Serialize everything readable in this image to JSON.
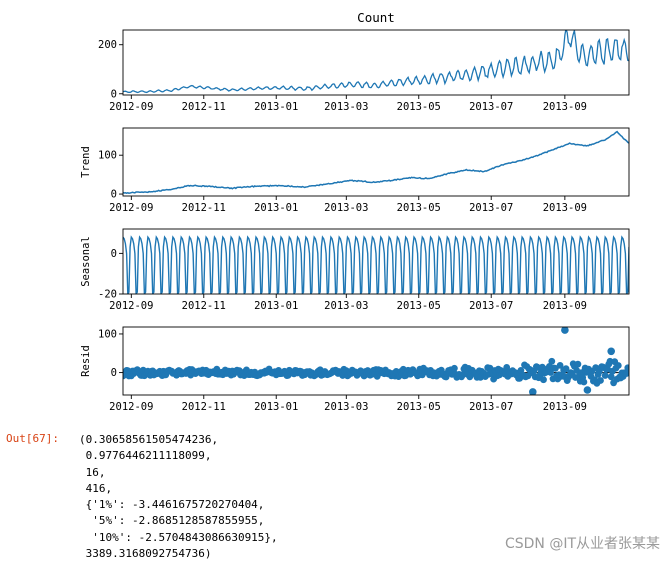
{
  "chart_data": {
    "type": "line",
    "x_start": "2012-08-25",
    "x_end": "2013-10-25",
    "x_ticks": [
      "2012-09",
      "2012-11",
      "2013-01",
      "2013-03",
      "2013-05",
      "2013-07",
      "2013-09"
    ],
    "panels": [
      {
        "title": "Count",
        "ylabel": "",
        "kind": "line",
        "ylim": [
          -5,
          260
        ],
        "yticks": [
          0,
          200
        ],
        "points": [
          [
            "2012-08-25",
            8
          ],
          [
            "2012-09-15",
            9
          ],
          [
            "2012-10-05",
            14
          ],
          [
            "2012-10-20",
            30
          ],
          [
            "2012-11-05",
            24
          ],
          [
            "2012-11-25",
            15
          ],
          [
            "2012-12-15",
            22
          ],
          [
            "2013-01-05",
            25
          ],
          [
            "2013-01-25",
            20
          ],
          [
            "2013-02-15",
            32
          ],
          [
            "2013-03-05",
            38
          ],
          [
            "2013-03-25",
            34
          ],
          [
            "2013-04-10",
            44
          ],
          [
            "2013-04-25",
            52
          ],
          [
            "2013-05-10",
            58
          ],
          [
            "2013-05-25",
            68
          ],
          [
            "2013-06-10",
            80
          ],
          [
            "2013-06-25",
            90
          ],
          [
            "2013-07-10",
            104
          ],
          [
            "2013-07-25",
            116
          ],
          [
            "2013-08-10",
            128
          ],
          [
            "2013-08-25",
            140
          ],
          [
            "2013-09-05",
            245
          ],
          [
            "2013-09-15",
            150
          ],
          [
            "2013-09-30",
            165
          ],
          [
            "2013-10-15",
            185
          ],
          [
            "2013-10-25",
            170
          ]
        ],
        "weekly_amplitude": [
          [
            0,
            3
          ],
          [
            0.3,
            5
          ],
          [
            0.55,
            12
          ],
          [
            0.7,
            25
          ],
          [
            0.85,
            40
          ],
          [
            1,
            50
          ]
        ]
      },
      {
        "title": "",
        "ylabel": "Trend",
        "kind": "line",
        "ylim": [
          -5,
          170
        ],
        "yticks": [
          0,
          100
        ],
        "points": [
          [
            "2012-08-25",
            3
          ],
          [
            "2012-09-15",
            5
          ],
          [
            "2012-10-05",
            12
          ],
          [
            "2012-10-20",
            22
          ],
          [
            "2012-11-05",
            20
          ],
          [
            "2012-11-25",
            15
          ],
          [
            "2012-12-15",
            20
          ],
          [
            "2013-01-05",
            22
          ],
          [
            "2013-01-25",
            18
          ],
          [
            "2013-02-15",
            27
          ],
          [
            "2013-03-05",
            35
          ],
          [
            "2013-03-25",
            30
          ],
          [
            "2013-04-10",
            36
          ],
          [
            "2013-04-25",
            42
          ],
          [
            "2013-05-10",
            40
          ],
          [
            "2013-05-25",
            52
          ],
          [
            "2013-06-10",
            62
          ],
          [
            "2013-06-25",
            58
          ],
          [
            "2013-07-10",
            75
          ],
          [
            "2013-07-25",
            85
          ],
          [
            "2013-08-10",
            100
          ],
          [
            "2013-08-25",
            118
          ],
          [
            "2013-09-05",
            130
          ],
          [
            "2013-09-20",
            124
          ],
          [
            "2013-10-05",
            140
          ],
          [
            "2013-10-15",
            160
          ],
          [
            "2013-10-25",
            130
          ]
        ]
      },
      {
        "title": "",
        "ylabel": "Seasonal",
        "kind": "seasonal",
        "ylim": [
          -20,
          12
        ],
        "yticks": [
          -20,
          0
        ],
        "period_days": 7,
        "max": 8,
        "min": -20
      },
      {
        "title": "",
        "ylabel": "Resid",
        "kind": "scatter",
        "ylim": [
          -58,
          118
        ],
        "yticks": [
          0,
          100
        ],
        "envelope": [
          [
            0,
            10
          ],
          [
            0.5,
            12
          ],
          [
            0.75,
            18
          ],
          [
            0.85,
            30
          ],
          [
            1,
            40
          ]
        ],
        "outliers": [
          [
            "2013-09-01",
            110
          ],
          [
            "2013-08-05",
            -50
          ],
          [
            "2013-09-20",
            -45
          ],
          [
            "2013-10-10",
            55
          ]
        ]
      }
    ]
  },
  "output": {
    "prompt": "Out[67]:",
    "lines": [
      "(0.30658561505474236,",
      " 0.9776446211118099,",
      " 16,",
      " 416,",
      " {'1%': -3.4461675720270404,",
      "  '5%': -2.8685128587855955,",
      "  '10%': -2.5704843086630915},",
      " 3389.3168092754736)"
    ]
  },
  "watermark": "CSDN @IT从业者张某某",
  "colors": {
    "series": "#1f77b4",
    "axis": "#000000",
    "prompt": "#d84315"
  }
}
